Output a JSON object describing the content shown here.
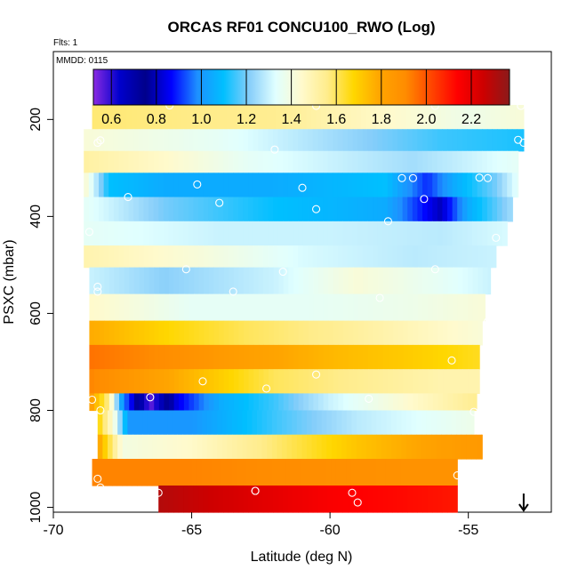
{
  "chart_data": {
    "type": "heatmap",
    "title": "ORCAS RF01 CONCU100_RWO (Log)",
    "flights_label": "Flts: 1",
    "date_label": "MMDD: 0115",
    "xlabel": "Latitude (deg N)",
    "ylabel": "PSXC (mbar)",
    "xlim": [
      -70,
      -52
    ],
    "ylim": [
      1010,
      60
    ],
    "x_ticks": [
      -70,
      -65,
      -60,
      -55
    ],
    "x_tick_labels": [
      "-70",
      "-65",
      "-60",
      "-55"
    ],
    "y_ticks": [
      200,
      400,
      600,
      800,
      1000
    ],
    "y_tick_labels": [
      "200",
      "400",
      "600",
      "800",
      "1000"
    ],
    "colorbar": {
      "range": [
        0.52,
        2.37
      ],
      "ticks": [
        0.6,
        0.8,
        1.0,
        1.2,
        1.4,
        1.6,
        1.8,
        2.0,
        2.2
      ],
      "tick_labels": [
        "0.6",
        "0.8",
        "1.0",
        "1.2",
        "1.4",
        "1.6",
        "1.8",
        "2.0",
        "2.2"
      ],
      "colors": [
        "#8a2be2",
        "#0000cd",
        "#00008b",
        "#0000ff",
        "#1e90ff",
        "#00bfff",
        "#87cefa",
        "#e0ffff",
        "#fffacd",
        "#ffec8b",
        "#ffd700",
        "#ffa500",
        "#ff8c00",
        "#ff4500",
        "#ff0000",
        "#cd0000",
        "#8b1a1a"
      ]
    },
    "bands": [
      {
        "p_top": 170,
        "p_bot": 220,
        "lat_start": -68.6,
        "lat_end": -53.0,
        "profile": [
          [
            -68.6,
            1.58
          ],
          [
            -62,
            1.55
          ],
          [
            -58,
            1.45
          ],
          [
            -55,
            1.38
          ],
          [
            -53,
            1.42
          ]
        ]
      },
      {
        "p_top": 220,
        "p_bot": 265,
        "lat_start": -68.9,
        "lat_end": -53.0,
        "profile": [
          [
            -68.9,
            1.42
          ],
          [
            -64,
            1.35
          ],
          [
            -60,
            1.25
          ],
          [
            -56,
            1.15
          ],
          [
            -53,
            1.12
          ]
        ]
      },
      {
        "p_top": 265,
        "p_bot": 310,
        "lat_start": -68.9,
        "lat_end": -53.2,
        "profile": [
          [
            -68.9,
            1.52
          ],
          [
            -66,
            1.45
          ],
          [
            -63,
            1.35
          ],
          [
            -60,
            1.3
          ],
          [
            -57,
            1.25
          ],
          [
            -55,
            1.3
          ],
          [
            -53.2,
            1.35
          ]
        ]
      },
      {
        "p_top": 310,
        "p_bot": 360,
        "lat_start": -68.9,
        "lat_end": -53.2,
        "profile": [
          [
            -68.9,
            1.45
          ],
          [
            -68,
            1.1
          ],
          [
            -66,
            1.05
          ],
          [
            -62,
            1.05
          ],
          [
            -58,
            1.1
          ],
          [
            -56.5,
            0.9
          ],
          [
            -55.5,
            1.05
          ],
          [
            -54,
            1.2
          ],
          [
            -53.2,
            1.35
          ]
        ]
      },
      {
        "p_top": 360,
        "p_bot": 410,
        "lat_start": -68.9,
        "lat_end": -53.4,
        "profile": [
          [
            -68.9,
            1.35
          ],
          [
            -66,
            1.2
          ],
          [
            -62,
            1.1
          ],
          [
            -58,
            1.05
          ],
          [
            -56,
            0.8
          ],
          [
            -55,
            1.05
          ],
          [
            -53.4,
            1.25
          ]
        ]
      },
      {
        "p_top": 410,
        "p_bot": 460,
        "lat_start": -68.9,
        "lat_end": -53.6,
        "profile": [
          [
            -68.9,
            1.35
          ],
          [
            -64,
            1.3
          ],
          [
            -60,
            1.3
          ],
          [
            -56,
            1.28
          ],
          [
            -53.6,
            1.32
          ]
        ]
      },
      {
        "p_top": 460,
        "p_bot": 505,
        "lat_start": -68.9,
        "lat_end": -54.0,
        "profile": [
          [
            -68.9,
            1.5
          ],
          [
            -65,
            1.42
          ],
          [
            -61,
            1.32
          ],
          [
            -57,
            1.28
          ],
          [
            -54,
            1.3
          ]
        ]
      },
      {
        "p_top": 505,
        "p_bot": 560,
        "lat_start": -68.7,
        "lat_end": -54.2,
        "profile": [
          [
            -68.7,
            1.3
          ],
          [
            -66,
            1.22
          ],
          [
            -62,
            1.3
          ],
          [
            -59,
            1.42
          ],
          [
            -56,
            1.35
          ],
          [
            -54.2,
            1.3
          ]
        ]
      },
      {
        "p_top": 560,
        "p_bot": 615,
        "lat_start": -68.7,
        "lat_end": -54.4,
        "profile": [
          [
            -68.7,
            1.45
          ],
          [
            -65,
            1.35
          ],
          [
            -61,
            1.35
          ],
          [
            -57,
            1.38
          ],
          [
            -54.4,
            1.42
          ]
        ]
      },
      {
        "p_top": 615,
        "p_bot": 665,
        "lat_start": -68.7,
        "lat_end": -54.5,
        "profile": [
          [
            -68.7,
            1.78
          ],
          [
            -66,
            1.68
          ],
          [
            -63,
            1.6
          ],
          [
            -60,
            1.55
          ],
          [
            -57,
            1.48
          ],
          [
            -54.5,
            1.42
          ]
        ]
      },
      {
        "p_top": 665,
        "p_bot": 715,
        "lat_start": -68.7,
        "lat_end": -54.6,
        "profile": [
          [
            -68.7,
            1.95
          ],
          [
            -66,
            1.9
          ],
          [
            -63,
            1.82
          ],
          [
            -60,
            1.75
          ],
          [
            -57,
            1.7
          ],
          [
            -54.6,
            1.65
          ]
        ]
      },
      {
        "p_top": 715,
        "p_bot": 765,
        "lat_start": -68.7,
        "lat_end": -54.6,
        "profile": [
          [
            -68.7,
            1.92
          ],
          [
            -66,
            1.8
          ],
          [
            -64,
            1.7
          ],
          [
            -62,
            1.6
          ],
          [
            -59,
            1.55
          ],
          [
            -56,
            1.5
          ],
          [
            -54.6,
            1.5
          ]
        ]
      },
      {
        "p_top": 765,
        "p_bot": 800,
        "lat_start": -68.7,
        "lat_end": -54.7,
        "profile": [
          [
            -68.7,
            1.85
          ],
          [
            -68,
            1.55
          ],
          [
            -67.5,
            1.0
          ],
          [
            -66.5,
            0.55
          ],
          [
            -65.5,
            0.85
          ],
          [
            -64,
            1.05
          ],
          [
            -62,
            1.15
          ],
          [
            -60,
            1.3
          ],
          [
            -57,
            1.45
          ],
          [
            -54.7,
            1.55
          ]
        ]
      },
      {
        "p_top": 800,
        "p_bot": 850,
        "lat_start": -68.4,
        "lat_end": -54.8,
        "profile": [
          [
            -68.4,
            1.7
          ],
          [
            -67.8,
            1.4
          ],
          [
            -67.3,
            1.0
          ],
          [
            -65,
            1.0
          ],
          [
            -62,
            1.15
          ],
          [
            -59,
            1.28
          ],
          [
            -56,
            1.35
          ],
          [
            -54.8,
            1.38
          ]
        ]
      },
      {
        "p_top": 850,
        "p_bot": 900,
        "lat_start": -68.4,
        "lat_end": -54.5,
        "profile": [
          [
            -68.4,
            1.82
          ],
          [
            -67.5,
            1.4
          ],
          [
            -65,
            1.45
          ],
          [
            -62,
            1.58
          ],
          [
            -59,
            1.72
          ],
          [
            -56,
            1.82
          ],
          [
            -54.5,
            1.85
          ]
        ]
      },
      {
        "p_top": 900,
        "p_bot": 955,
        "lat_start": -68.6,
        "lat_end": -55.4,
        "profile": [
          [
            -68.6,
            1.92
          ],
          [
            -65,
            1.92
          ],
          [
            -61,
            1.9
          ],
          [
            -57,
            1.88
          ],
          [
            -55.4,
            1.88
          ]
        ]
      },
      {
        "p_top": 955,
        "p_bot": 1010,
        "lat_start": -66.2,
        "lat_end": -55.4,
        "profile": [
          [
            -66.2,
            2.3
          ],
          [
            -63,
            2.22
          ],
          [
            -60,
            2.15
          ],
          [
            -57,
            2.12
          ],
          [
            -55.4,
            2.1
          ]
        ]
      }
    ],
    "points": [
      [
        -68.3,
        243
      ],
      [
        -65.8,
        171
      ],
      [
        -60.5,
        172
      ],
      [
        -56.2,
        172
      ],
      [
        -53.1,
        172
      ],
      [
        -68.4,
        248
      ],
      [
        -53.2,
        242
      ],
      [
        -62.0,
        262
      ],
      [
        -53.0,
        248
      ],
      [
        -57.4,
        321
      ],
      [
        -57.0,
        321
      ],
      [
        -54.6,
        320
      ],
      [
        -54.3,
        321
      ],
      [
        -64.8,
        334
      ],
      [
        -61.0,
        341
      ],
      [
        -67.3,
        360
      ],
      [
        -64.0,
        372
      ],
      [
        -60.5,
        385
      ],
      [
        -56.6,
        364
      ],
      [
        -57.9,
        410
      ],
      [
        -54.0,
        444
      ],
      [
        -68.7,
        432
      ],
      [
        -65.2,
        509
      ],
      [
        -61.7,
        514
      ],
      [
        -56.2,
        509
      ],
      [
        -68.4,
        545
      ],
      [
        -68.4,
        555
      ],
      [
        -63.5,
        555
      ],
      [
        -58.2,
        568
      ],
      [
        -54.3,
        617
      ],
      [
        -55.6,
        697
      ],
      [
        -60.5,
        726
      ],
      [
        -64.6,
        740
      ],
      [
        -62.3,
        755
      ],
      [
        -66.5,
        773
      ],
      [
        -68.6,
        778
      ],
      [
        -58.6,
        776
      ],
      [
        -68.3,
        800
      ],
      [
        -54.8,
        803
      ],
      [
        -55.4,
        934
      ],
      [
        -68.4,
        941
      ],
      [
        -68.3,
        959
      ],
      [
        -66.2,
        970
      ],
      [
        -62.7,
        966
      ],
      [
        -62.7,
        966
      ],
      [
        -59.2,
        970
      ],
      [
        -59.0,
        990
      ],
      [
        -54.9,
        992
      ]
    ],
    "arrow_lat": -53.0
  }
}
